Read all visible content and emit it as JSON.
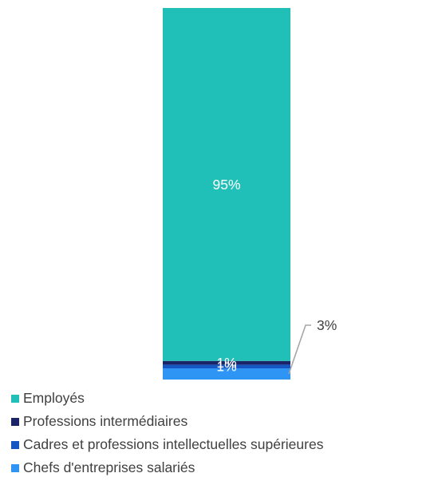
{
  "chart_data": {
    "type": "bar",
    "stacked": true,
    "categories": [
      ""
    ],
    "series": [
      {
        "name": "Employés",
        "values": [
          95
        ],
        "label": "95%",
        "color": "#20c0b8"
      },
      {
        "name": "Professions intermédiaires",
        "values": [
          1
        ],
        "label": "1%",
        "color": "#1a2466"
      },
      {
        "name": "Cadres et professions intellectuelles supérieures",
        "values": [
          1
        ],
        "label": "1%",
        "color": "#1656c2"
      },
      {
        "name": "Chefs d'entreprises salariés",
        "values": [
          3
        ],
        "label": "3%",
        "color": "#2f95f5"
      }
    ],
    "callout_series": "Chefs d'entreprises salariés",
    "ylim": [
      0,
      100
    ],
    "grid": false,
    "legend_position": "bottom-left",
    "title": "",
    "xlabel": "",
    "ylabel": ""
  }
}
